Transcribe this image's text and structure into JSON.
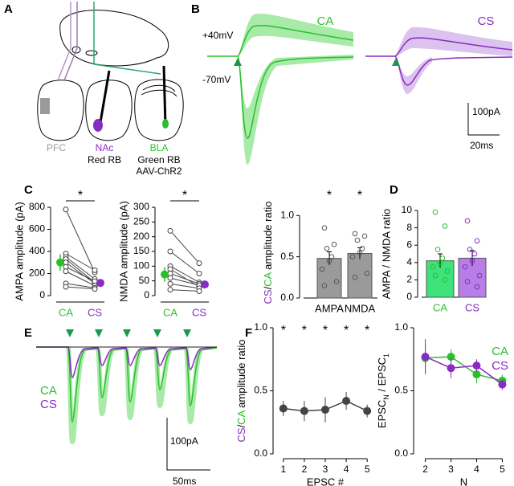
{
  "panel_A": {
    "letter": "A",
    "labels": [
      "PFC",
      "NAc",
      "Red RB",
      "BLA",
      "Green RB",
      "AAV-ChR2"
    ]
  },
  "panel_B": {
    "letter": "B",
    "condition_labels": [
      "CA",
      "CS"
    ],
    "holding_labels": [
      "+40mV",
      "-70mV"
    ],
    "scale_bar": [
      "100pA",
      "20ms"
    ]
  },
  "panel_E": {
    "letter": "E",
    "labels": [
      "CA",
      "CS"
    ],
    "scale_bar": [
      "100pA",
      "50ms"
    ]
  },
  "chart_data": [
    {
      "type": "paired",
      "panel": "C",
      "y_label": "AMPA amplitude (pA)",
      "categories": [
        "CA",
        "CS"
      ],
      "category_colors": [
        "#2bbf2b",
        "#8a2bc2"
      ],
      "pairs": [
        [
          780,
          210
        ],
        [
          380,
          230
        ],
        [
          350,
          150
        ],
        [
          330,
          120
        ],
        [
          300,
          110
        ],
        [
          260,
          130
        ],
        [
          220,
          90
        ],
        [
          110,
          70
        ],
        [
          80,
          60
        ]
      ],
      "means": [
        300,
        115
      ],
      "errors": [
        75,
        20
      ],
      "ylim": [
        0,
        800
      ],
      "yticks": [
        0,
        200,
        400,
        600,
        800
      ],
      "annotation": "*"
    },
    {
      "type": "paired",
      "y_label": "NMDA amplitude (pA)",
      "categories": [
        "CA",
        "CS"
      ],
      "category_colors": [
        "#2bbf2b",
        "#8a2bc2"
      ],
      "pairs": [
        [
          220,
          110
        ],
        [
          150,
          75
        ],
        [
          100,
          45
        ],
        [
          90,
          30
        ],
        [
          75,
          40
        ],
        [
          60,
          35
        ],
        [
          40,
          25
        ],
        [
          20,
          15
        ]
      ],
      "means": [
        72,
        38
      ],
      "errors": [
        25,
        12
      ],
      "ylim": [
        0,
        300
      ],
      "yticks": [
        0,
        50,
        100,
        150,
        200,
        250,
        300
      ],
      "annotation": "*"
    },
    {
      "type": "bar",
      "y_label_parts": [
        {
          "text": "CS",
          "color": "#8a2bc2"
        },
        {
          "text": "/",
          "color": "#000000"
        },
        {
          "text": "CA",
          "color": "#2bbf2b"
        },
        {
          "text": " amplitude ratio",
          "color": "#000000"
        }
      ],
      "categories": [
        "AMPA",
        "NMDA"
      ],
      "values": [
        0.48,
        0.54
      ],
      "errors": [
        0.08,
        0.07
      ],
      "colors": [
        "#9a9a9a",
        "#9a9a9a"
      ],
      "points": [
        [
          0.85,
          0.65,
          0.6,
          0.5,
          0.45,
          0.35,
          0.2,
          0.15
        ],
        [
          0.78,
          0.75,
          0.7,
          0.6,
          0.55,
          0.5,
          0.3,
          0.25
        ]
      ],
      "ylim": [
        0,
        1.1
      ],
      "yticks": [
        {
          "value": 0,
          "label": "0.0"
        },
        {
          "value": 0.5,
          "label": "0.5"
        },
        {
          "value": 1,
          "label": "1.0"
        }
      ],
      "annotations": [
        "*",
        "*"
      ]
    },
    {
      "type": "bar",
      "panel": "D",
      "y_label": "AMPA / NMDA ratio",
      "categories": [
        "CA",
        "CS"
      ],
      "category_colors": [
        "#2bbf2b",
        "#8a2bc2"
      ],
      "values": [
        4.2,
        4.5
      ],
      "errors": [
        0.8,
        0.9
      ],
      "colors": [
        "#3ee27a",
        "#b77ee8"
      ],
      "points": [
        [
          9.8,
          8.2,
          5.5,
          4.5,
          4.0,
          3.5,
          3.0,
          2.5,
          2.0
        ],
        [
          8.8,
          6.5,
          5.5,
          5.0,
          4.2,
          3.5,
          2.5,
          1.8,
          1.2
        ]
      ],
      "ylim": [
        0,
        10
      ],
      "yticks": [
        0,
        2,
        4,
        6,
        8,
        10
      ]
    },
    {
      "type": "line",
      "panel": "F",
      "y_label_parts": [
        {
          "text": "CS",
          "color": "#8a2bc2"
        },
        {
          "text": "/",
          "color": "#000000"
        },
        {
          "text": "CA",
          "color": "#2bbf2b"
        },
        {
          "text": " amplitude ratio",
          "color": "#000000"
        }
      ],
      "x_label": "EPSC #",
      "x": [
        1,
        2,
        3,
        4,
        5
      ],
      "xlim": [
        0.7,
        5.3
      ],
      "xticks": [
        1,
        2,
        3,
        4,
        5
      ],
      "series": [
        {
          "color": "#444444",
          "values": [
            0.36,
            0.34,
            0.35,
            0.42,
            0.34
          ],
          "errors": [
            0.06,
            0.08,
            0.1,
            0.07,
            0.05
          ]
        }
      ],
      "ylim": [
        0,
        1
      ],
      "yticks": [
        {
          "value": 0,
          "label": "0.0"
        },
        {
          "value": 0.5,
          "label": "0.5"
        },
        {
          "value": 1,
          "label": "1.0"
        }
      ],
      "annotations": [
        "*",
        "*",
        "*",
        "*",
        "*"
      ]
    },
    {
      "type": "line",
      "y_label_parts": [
        {
          "text": "EPSC"
        },
        {
          "text": "N",
          "sub": true
        },
        {
          "text": " / EPSC"
        },
        {
          "text": "1",
          "sub": true
        }
      ],
      "x_label": "N",
      "x": [
        2,
        3,
        4,
        5
      ],
      "xlim": [
        1.7,
        5.3
      ],
      "xticks": [
        2,
        3,
        4,
        5
      ],
      "legend": "upper right",
      "series": [
        {
          "name": "CA",
          "color": "#2bbf2b",
          "values": [
            0.76,
            0.77,
            0.63,
            0.58
          ],
          "errors": [
            0.1,
            0.06,
            0.07,
            0.05
          ]
        },
        {
          "name": "CS",
          "color": "#8a2bc2",
          "values": [
            0.77,
            0.68,
            0.7,
            0.55
          ],
          "errors": [
            0.14,
            0.08,
            0.05,
            0.04
          ]
        }
      ],
      "ylim": [
        0,
        1
      ],
      "yticks": [
        {
          "value": 0,
          "label": "0.0"
        },
        {
          "value": 0.5,
          "label": "0.5"
        },
        {
          "value": 1,
          "label": "1.0"
        }
      ]
    }
  ]
}
